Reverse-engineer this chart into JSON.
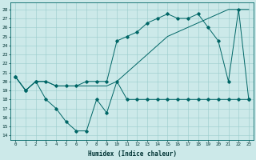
{
  "title": "",
  "xlabel": "Humidex (Indice chaleur)",
  "ylabel_ticks": [
    14,
    15,
    16,
    17,
    18,
    19,
    20,
    21,
    22,
    23,
    24,
    25,
    26,
    27,
    28
  ],
  "xlim": [
    -0.5,
    23.5
  ],
  "ylim": [
    13.5,
    28.8
  ],
  "xticks": [
    0,
    1,
    2,
    3,
    4,
    5,
    6,
    7,
    8,
    9,
    10,
    11,
    12,
    13,
    14,
    15,
    16,
    17,
    18,
    19,
    20,
    21,
    22,
    23
  ],
  "background_color": "#cce9e9",
  "grid_color": "#99cccc",
  "line_color": "#006666",
  "line1_x": [
    0,
    1,
    2,
    3,
    4,
    5,
    6,
    7,
    8,
    9,
    10,
    11,
    12,
    13,
    14,
    15,
    16,
    17,
    18,
    19,
    20,
    21,
    22,
    23
  ],
  "line1_y": [
    20.5,
    19.0,
    20.0,
    18.0,
    17.0,
    15.5,
    14.5,
    14.5,
    18.0,
    16.5,
    20.0,
    18.0,
    18.0,
    18.0,
    18.0,
    18.0,
    18.0,
    18.0,
    18.0,
    18.0,
    18.0,
    18.0,
    18.0,
    18.0
  ],
  "line2_x": [
    0,
    1,
    2,
    3,
    4,
    5,
    6,
    7,
    8,
    9,
    10,
    11,
    12,
    13,
    14,
    15,
    16,
    17,
    18,
    19,
    20,
    21,
    22,
    23
  ],
  "line2_y": [
    20.5,
    19.0,
    20.0,
    20.0,
    19.5,
    19.5,
    19.5,
    19.5,
    19.5,
    19.5,
    20.0,
    21.0,
    22.0,
    23.0,
    24.0,
    25.0,
    25.5,
    26.0,
    26.5,
    27.0,
    27.5,
    28.0,
    28.0,
    28.0
  ],
  "line3_x": [
    0,
    1,
    2,
    3,
    4,
    5,
    6,
    7,
    8,
    9,
    10,
    11,
    12,
    13,
    14,
    15,
    16,
    17,
    18,
    19,
    20,
    21,
    22,
    23
  ],
  "line3_y": [
    20.5,
    19.0,
    20.0,
    20.0,
    19.5,
    19.5,
    19.5,
    20.0,
    20.0,
    20.0,
    24.5,
    25.0,
    25.5,
    26.5,
    27.0,
    27.5,
    27.0,
    27.0,
    27.5,
    26.0,
    24.5,
    20.0,
    28.0,
    18.0
  ]
}
